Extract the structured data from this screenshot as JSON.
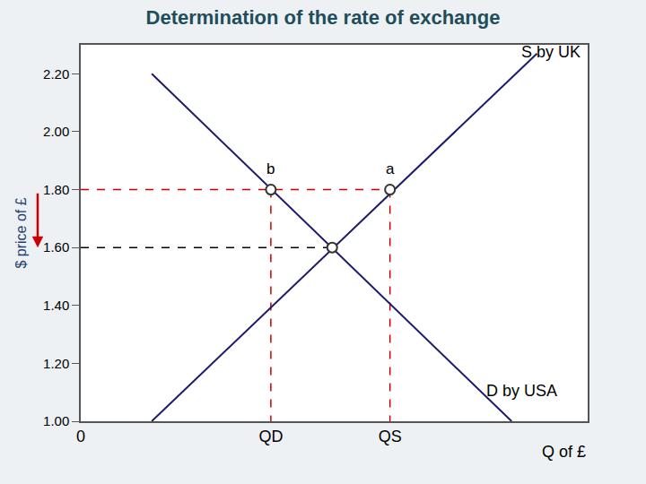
{
  "chart_data": {
    "type": "line",
    "title": "Determination of the rate of exchange",
    "y_label": "$ price of £",
    "x_label": "Q of £",
    "xlim": [
      0,
      100
    ],
    "ylim": [
      1.0,
      2.3
    ],
    "xticks": [
      0,
      {
        "value": 37.5,
        "label": "QD"
      },
      {
        "value": 61,
        "label": "QS"
      }
    ],
    "yticks": [
      {
        "value": 1.0,
        "label": "1.00"
      },
      {
        "value": 1.2,
        "label": "1.20"
      },
      {
        "value": 1.4,
        "label": "1.40"
      },
      {
        "value": 1.6,
        "label": "1.60"
      },
      {
        "value": 1.8,
        "label": "1.80"
      },
      {
        "value": 2.0,
        "label": "2.00"
      },
      {
        "value": 2.2,
        "label": "2.20"
      }
    ],
    "grid": false,
    "series": [
      {
        "name": "S by UK",
        "color": "#1c1c6e",
        "x": [
          14,
          90
        ],
        "values": [
          1.0,
          2.27
        ]
      },
      {
        "name": "D by USA",
        "color": "#1c1c6e",
        "x": [
          14,
          85
        ],
        "values": [
          2.2,
          1.0
        ]
      }
    ],
    "guides": [
      {
        "color": "#cc0000",
        "line_style": "dash",
        "x": [
          0,
          61
        ],
        "values": [
          1.8,
          1.8
        ]
      },
      {
        "color": "#cc0000",
        "line_style": "dash",
        "x": [
          37.5,
          37.5
        ],
        "values": [
          1.8,
          1.0
        ]
      },
      {
        "color": "#cc0000",
        "line_style": "dash",
        "x": [
          61,
          61
        ],
        "values": [
          1.8,
          1.0
        ]
      },
      {
        "color": "#000000",
        "line_style": "dash",
        "x": [
          0,
          49.6
        ],
        "values": [
          1.6,
          1.6
        ]
      }
    ],
    "points": [
      {
        "label": "b",
        "x": 37.5,
        "y": 1.8
      },
      {
        "label": "a",
        "x": 61,
        "y": 1.8
      },
      {
        "x": 49.6,
        "y": 1.6
      }
    ],
    "marker": "circle"
  }
}
